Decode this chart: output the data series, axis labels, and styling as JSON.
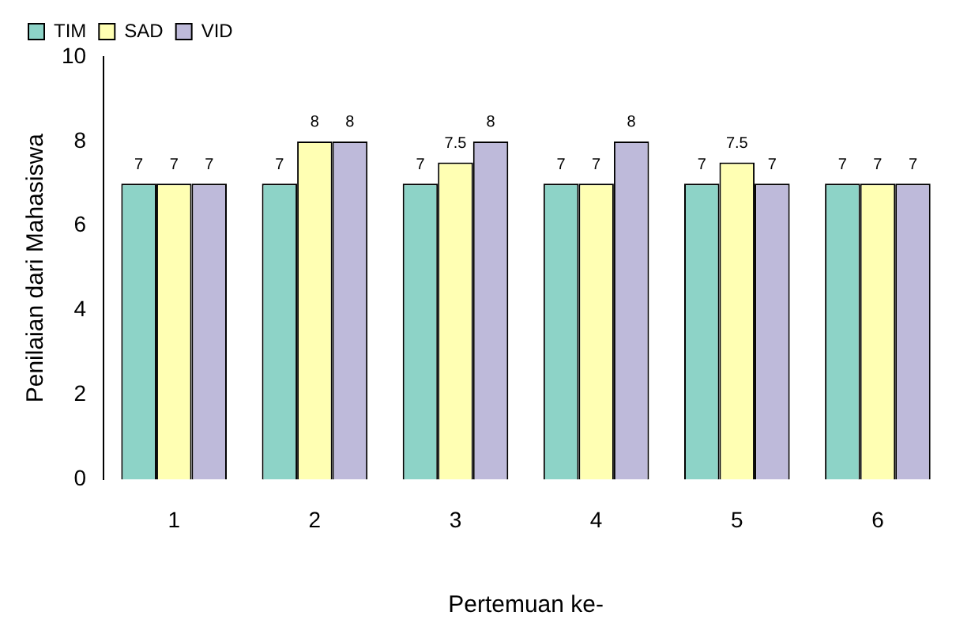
{
  "chart_data": {
    "type": "bar",
    "xlabel": "Pertemuan ke-",
    "ylabel": "Penilaian dari Mahasiswa",
    "categories": [
      "1",
      "2",
      "3",
      "4",
      "5",
      "6"
    ],
    "series": [
      {
        "name": "TIM",
        "color": "#8dd3c7",
        "values": [
          7,
          7,
          7,
          7,
          7,
          7
        ]
      },
      {
        "name": "SAD",
        "color": "#ffffb3",
        "values": [
          7,
          8,
          7.5,
          7,
          7.5,
          7
        ]
      },
      {
        "name": "VID",
        "color": "#bebada",
        "values": [
          7,
          8,
          8,
          8,
          7,
          7
        ]
      }
    ],
    "ylim": [
      0,
      10
    ],
    "yticks": [
      0,
      2,
      4,
      6,
      8,
      10
    ],
    "grid": false,
    "legend": "top left",
    "data_labels": true
  }
}
